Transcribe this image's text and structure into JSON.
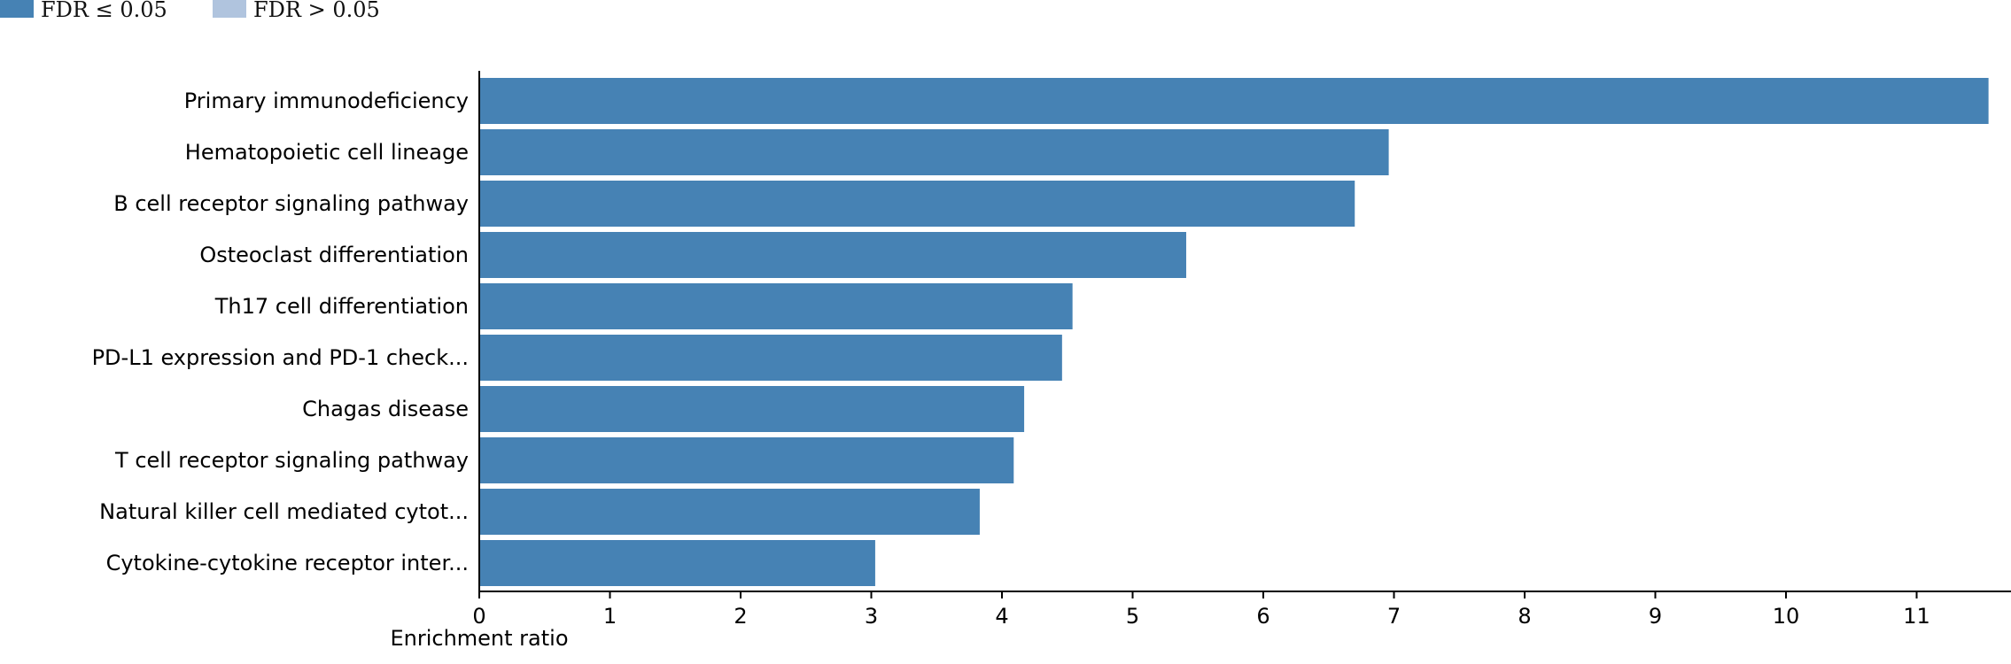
{
  "chart_data": {
    "type": "bar",
    "orientation": "horizontal",
    "xlabel": "Enrichment ratio",
    "ylabel": "",
    "xlim": [
      0,
      11.6
    ],
    "xticks": [
      0,
      1,
      2,
      3,
      4,
      5,
      6,
      7,
      8,
      9,
      10,
      11
    ],
    "grid": false,
    "legend_position": "top-left",
    "legend": [
      {
        "label": "FDR ≤ 0.05",
        "color": "#4682b4"
      },
      {
        "label": "FDR > 0.05",
        "color": "#b0c4de"
      }
    ],
    "categories": [
      "Primary immunodeficiency",
      "Hematopoietic cell lineage",
      "B cell receptor signaling pathway",
      "Osteoclast differentiation",
      "Th17 cell differentiation",
      "PD-L1 expression and PD-1 check...",
      "Chagas disease",
      "T cell receptor signaling pathway",
      "Natural killer cell mediated cytot...",
      "Cytokine-cytokine receptor inter..."
    ],
    "values": [
      11.55,
      6.96,
      6.7,
      5.41,
      4.54,
      4.46,
      4.17,
      4.09,
      3.83,
      3.03
    ],
    "significant": [
      true,
      true,
      true,
      true,
      true,
      true,
      true,
      true,
      true,
      true
    ]
  }
}
